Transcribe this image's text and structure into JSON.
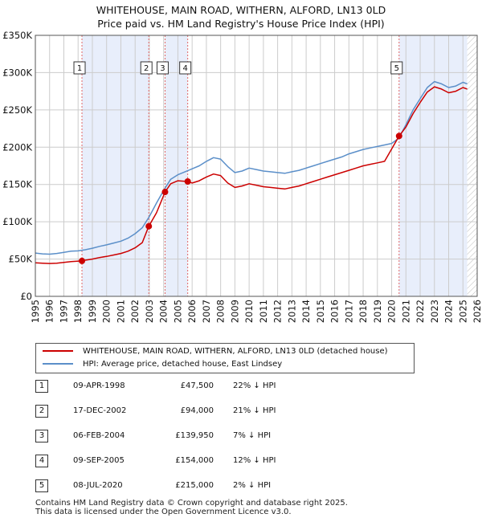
{
  "title": {
    "line1": "WHITEHOUSE, MAIN ROAD, WITHERN, ALFORD, LN13 0LD",
    "line2": "Price paid vs. HM Land Registry's House Price Index (HPI)"
  },
  "legend": {
    "property": "WHITEHOUSE, MAIN ROAD, WITHERN, ALFORD, LN13 0LD (detached house)",
    "hpi": "HPI: Average price, detached house, East Lindsey"
  },
  "colors": {
    "property": "#cc0000",
    "hpi": "#5b8fc9",
    "band": "#e8eefb",
    "grid": "#cccccc"
  },
  "chart_data": {
    "type": "line",
    "title": "Price paid vs. HM Land Registry's House Price Index (HPI)",
    "xlabel": "",
    "ylabel": "",
    "xlim": [
      1995,
      2026
    ],
    "ylim": [
      0,
      350000
    ],
    "x_ticks": [
      1995,
      1996,
      1997,
      1998,
      1999,
      2000,
      2001,
      2002,
      2003,
      2004,
      2005,
      2006,
      2007,
      2008,
      2009,
      2010,
      2011,
      2012,
      2013,
      2014,
      2015,
      2016,
      2017,
      2018,
      2019,
      2020,
      2021,
      2022,
      2023,
      2024,
      2025,
      2026
    ],
    "y_ticks": [
      {
        "value": 0,
        "label": "£0"
      },
      {
        "value": 50000,
        "label": "£50K"
      },
      {
        "value": 100000,
        "label": "£100K"
      },
      {
        "value": 150000,
        "label": "£150K"
      },
      {
        "value": 200000,
        "label": "£200K"
      },
      {
        "value": 250000,
        "label": "£250K"
      },
      {
        "value": 300000,
        "label": "£300K"
      },
      {
        "value": 350000,
        "label": "£350K"
      }
    ],
    "series": [
      {
        "name": "HPI: Average price, detached house, East Lindsey",
        "points": [
          [
            1995.0,
            58000
          ],
          [
            1995.5,
            57000
          ],
          [
            1996.0,
            56500
          ],
          [
            1996.5,
            57500
          ],
          [
            1997.0,
            59000
          ],
          [
            1997.5,
            60500
          ],
          [
            1998.0,
            61000
          ],
          [
            1998.5,
            62500
          ],
          [
            1999.0,
            64500
          ],
          [
            1999.5,
            67000
          ],
          [
            2000.0,
            69000
          ],
          [
            2000.5,
            71500
          ],
          [
            2001.0,
            74000
          ],
          [
            2001.5,
            78000
          ],
          [
            2002.0,
            84000
          ],
          [
            2002.5,
            92000
          ],
          [
            2003.0,
            107000
          ],
          [
            2003.5,
            125000
          ],
          [
            2004.0,
            142000
          ],
          [
            2004.5,
            157000
          ],
          [
            2005.0,
            163000
          ],
          [
            2005.5,
            167000
          ],
          [
            2006.0,
            171000
          ],
          [
            2006.5,
            175000
          ],
          [
            2007.0,
            181000
          ],
          [
            2007.5,
            186000
          ],
          [
            2008.0,
            184000
          ],
          [
            2008.5,
            174000
          ],
          [
            2009.0,
            166000
          ],
          [
            2009.5,
            168000
          ],
          [
            2010.0,
            172000
          ],
          [
            2010.5,
            170000
          ],
          [
            2011.0,
            168000
          ],
          [
            2011.5,
            167000
          ],
          [
            2012.0,
            166000
          ],
          [
            2012.5,
            165000
          ],
          [
            2013.0,
            167000
          ],
          [
            2013.5,
            169000
          ],
          [
            2014.0,
            172000
          ],
          [
            2014.5,
            175000
          ],
          [
            2015.0,
            178000
          ],
          [
            2015.5,
            181000
          ],
          [
            2016.0,
            184000
          ],
          [
            2016.5,
            187000
          ],
          [
            2017.0,
            191000
          ],
          [
            2017.5,
            194000
          ],
          [
            2018.0,
            197000
          ],
          [
            2018.5,
            199000
          ],
          [
            2019.0,
            201000
          ],
          [
            2019.5,
            203000
          ],
          [
            2020.0,
            205000
          ],
          [
            2020.5,
            212000
          ],
          [
            2021.0,
            230000
          ],
          [
            2021.5,
            250000
          ],
          [
            2022.0,
            265000
          ],
          [
            2022.5,
            280000
          ],
          [
            2023.0,
            288000
          ],
          [
            2023.5,
            285000
          ],
          [
            2024.0,
            280000
          ],
          [
            2024.5,
            282000
          ],
          [
            2025.0,
            287000
          ],
          [
            2025.3,
            285000
          ]
        ]
      },
      {
        "name": "WHITEHOUSE, MAIN ROAD, WITHERN, ALFORD, LN13 0LD (detached house)",
        "points": [
          [
            1995.0,
            45000
          ],
          [
            1995.5,
            44500
          ],
          [
            1996.0,
            44000
          ],
          [
            1996.5,
            44500
          ],
          [
            1997.0,
            45500
          ],
          [
            1997.5,
            46500
          ],
          [
            1998.27,
            47500
          ],
          [
            1998.5,
            48500
          ],
          [
            1999.0,
            50000
          ],
          [
            1999.5,
            52000
          ],
          [
            2000.0,
            53500
          ],
          [
            2000.5,
            55500
          ],
          [
            2001.0,
            57500
          ],
          [
            2001.5,
            60500
          ],
          [
            2002.0,
            65000
          ],
          [
            2002.5,
            72000
          ],
          [
            2002.96,
            94000
          ],
          [
            2003.5,
            112000
          ],
          [
            2004.1,
            139950
          ],
          [
            2004.5,
            151000
          ],
          [
            2005.0,
            155000
          ],
          [
            2005.69,
            154000
          ],
          [
            2006.0,
            152000
          ],
          [
            2006.5,
            155000
          ],
          [
            2007.0,
            160000
          ],
          [
            2007.5,
            164000
          ],
          [
            2008.0,
            162000
          ],
          [
            2008.5,
            152000
          ],
          [
            2009.0,
            146000
          ],
          [
            2009.5,
            148000
          ],
          [
            2010.0,
            151000
          ],
          [
            2010.5,
            149000
          ],
          [
            2011.0,
            147000
          ],
          [
            2011.5,
            146000
          ],
          [
            2012.0,
            145000
          ],
          [
            2012.5,
            144000
          ],
          [
            2013.0,
            146000
          ],
          [
            2013.5,
            148000
          ],
          [
            2014.0,
            151000
          ],
          [
            2014.5,
            154000
          ],
          [
            2015.0,
            157000
          ],
          [
            2015.5,
            160000
          ],
          [
            2016.0,
            163000
          ],
          [
            2016.5,
            166000
          ],
          [
            2017.0,
            169000
          ],
          [
            2017.5,
            172000
          ],
          [
            2018.0,
            175000
          ],
          [
            2018.5,
            177000
          ],
          [
            2019.0,
            179000
          ],
          [
            2019.5,
            181000
          ],
          [
            2020.52,
            215000
          ],
          [
            2021.0,
            227000
          ],
          [
            2021.5,
            245000
          ],
          [
            2022.0,
            260000
          ],
          [
            2022.5,
            274000
          ],
          [
            2023.0,
            281000
          ],
          [
            2023.5,
            278000
          ],
          [
            2024.0,
            273000
          ],
          [
            2024.5,
            275000
          ],
          [
            2025.0,
            280000
          ],
          [
            2025.3,
            278000
          ]
        ]
      }
    ],
    "transactions": [
      {
        "num": "1",
        "x": 1998.27,
        "price": 47500,
        "date": "09-APR-1998",
        "price_label": "£47,500",
        "hpi": "22% ↓ HPI"
      },
      {
        "num": "2",
        "x": 2002.96,
        "price": 94000,
        "date": "17-DEC-2002",
        "price_label": "£94,000",
        "hpi": "21% ↓ HPI"
      },
      {
        "num": "3",
        "x": 2004.1,
        "price": 139950,
        "date": "06-FEB-2004",
        "price_label": "£139,950",
        "hpi": "7% ↓ HPI"
      },
      {
        "num": "4",
        "x": 2005.69,
        "price": 154000,
        "date": "09-SEP-2005",
        "price_label": "£154,000",
        "hpi": "12% ↓ HPI"
      },
      {
        "num": "5",
        "x": 2020.52,
        "price": 215000,
        "date": "08-JUL-2020",
        "price_label": "£215,000",
        "hpi": "2% ↓ HPI"
      }
    ],
    "shaded_bands": [
      [
        1998.27,
        2002.96
      ],
      [
        2004.1,
        2005.69
      ],
      [
        2020.52,
        2025.3
      ]
    ],
    "hatch_from": 2025.3
  },
  "footer": {
    "line1": "Contains HM Land Registry data © Crown copyright and database right 2025.",
    "line2": "This data is licensed under the Open Government Licence v3.0."
  }
}
